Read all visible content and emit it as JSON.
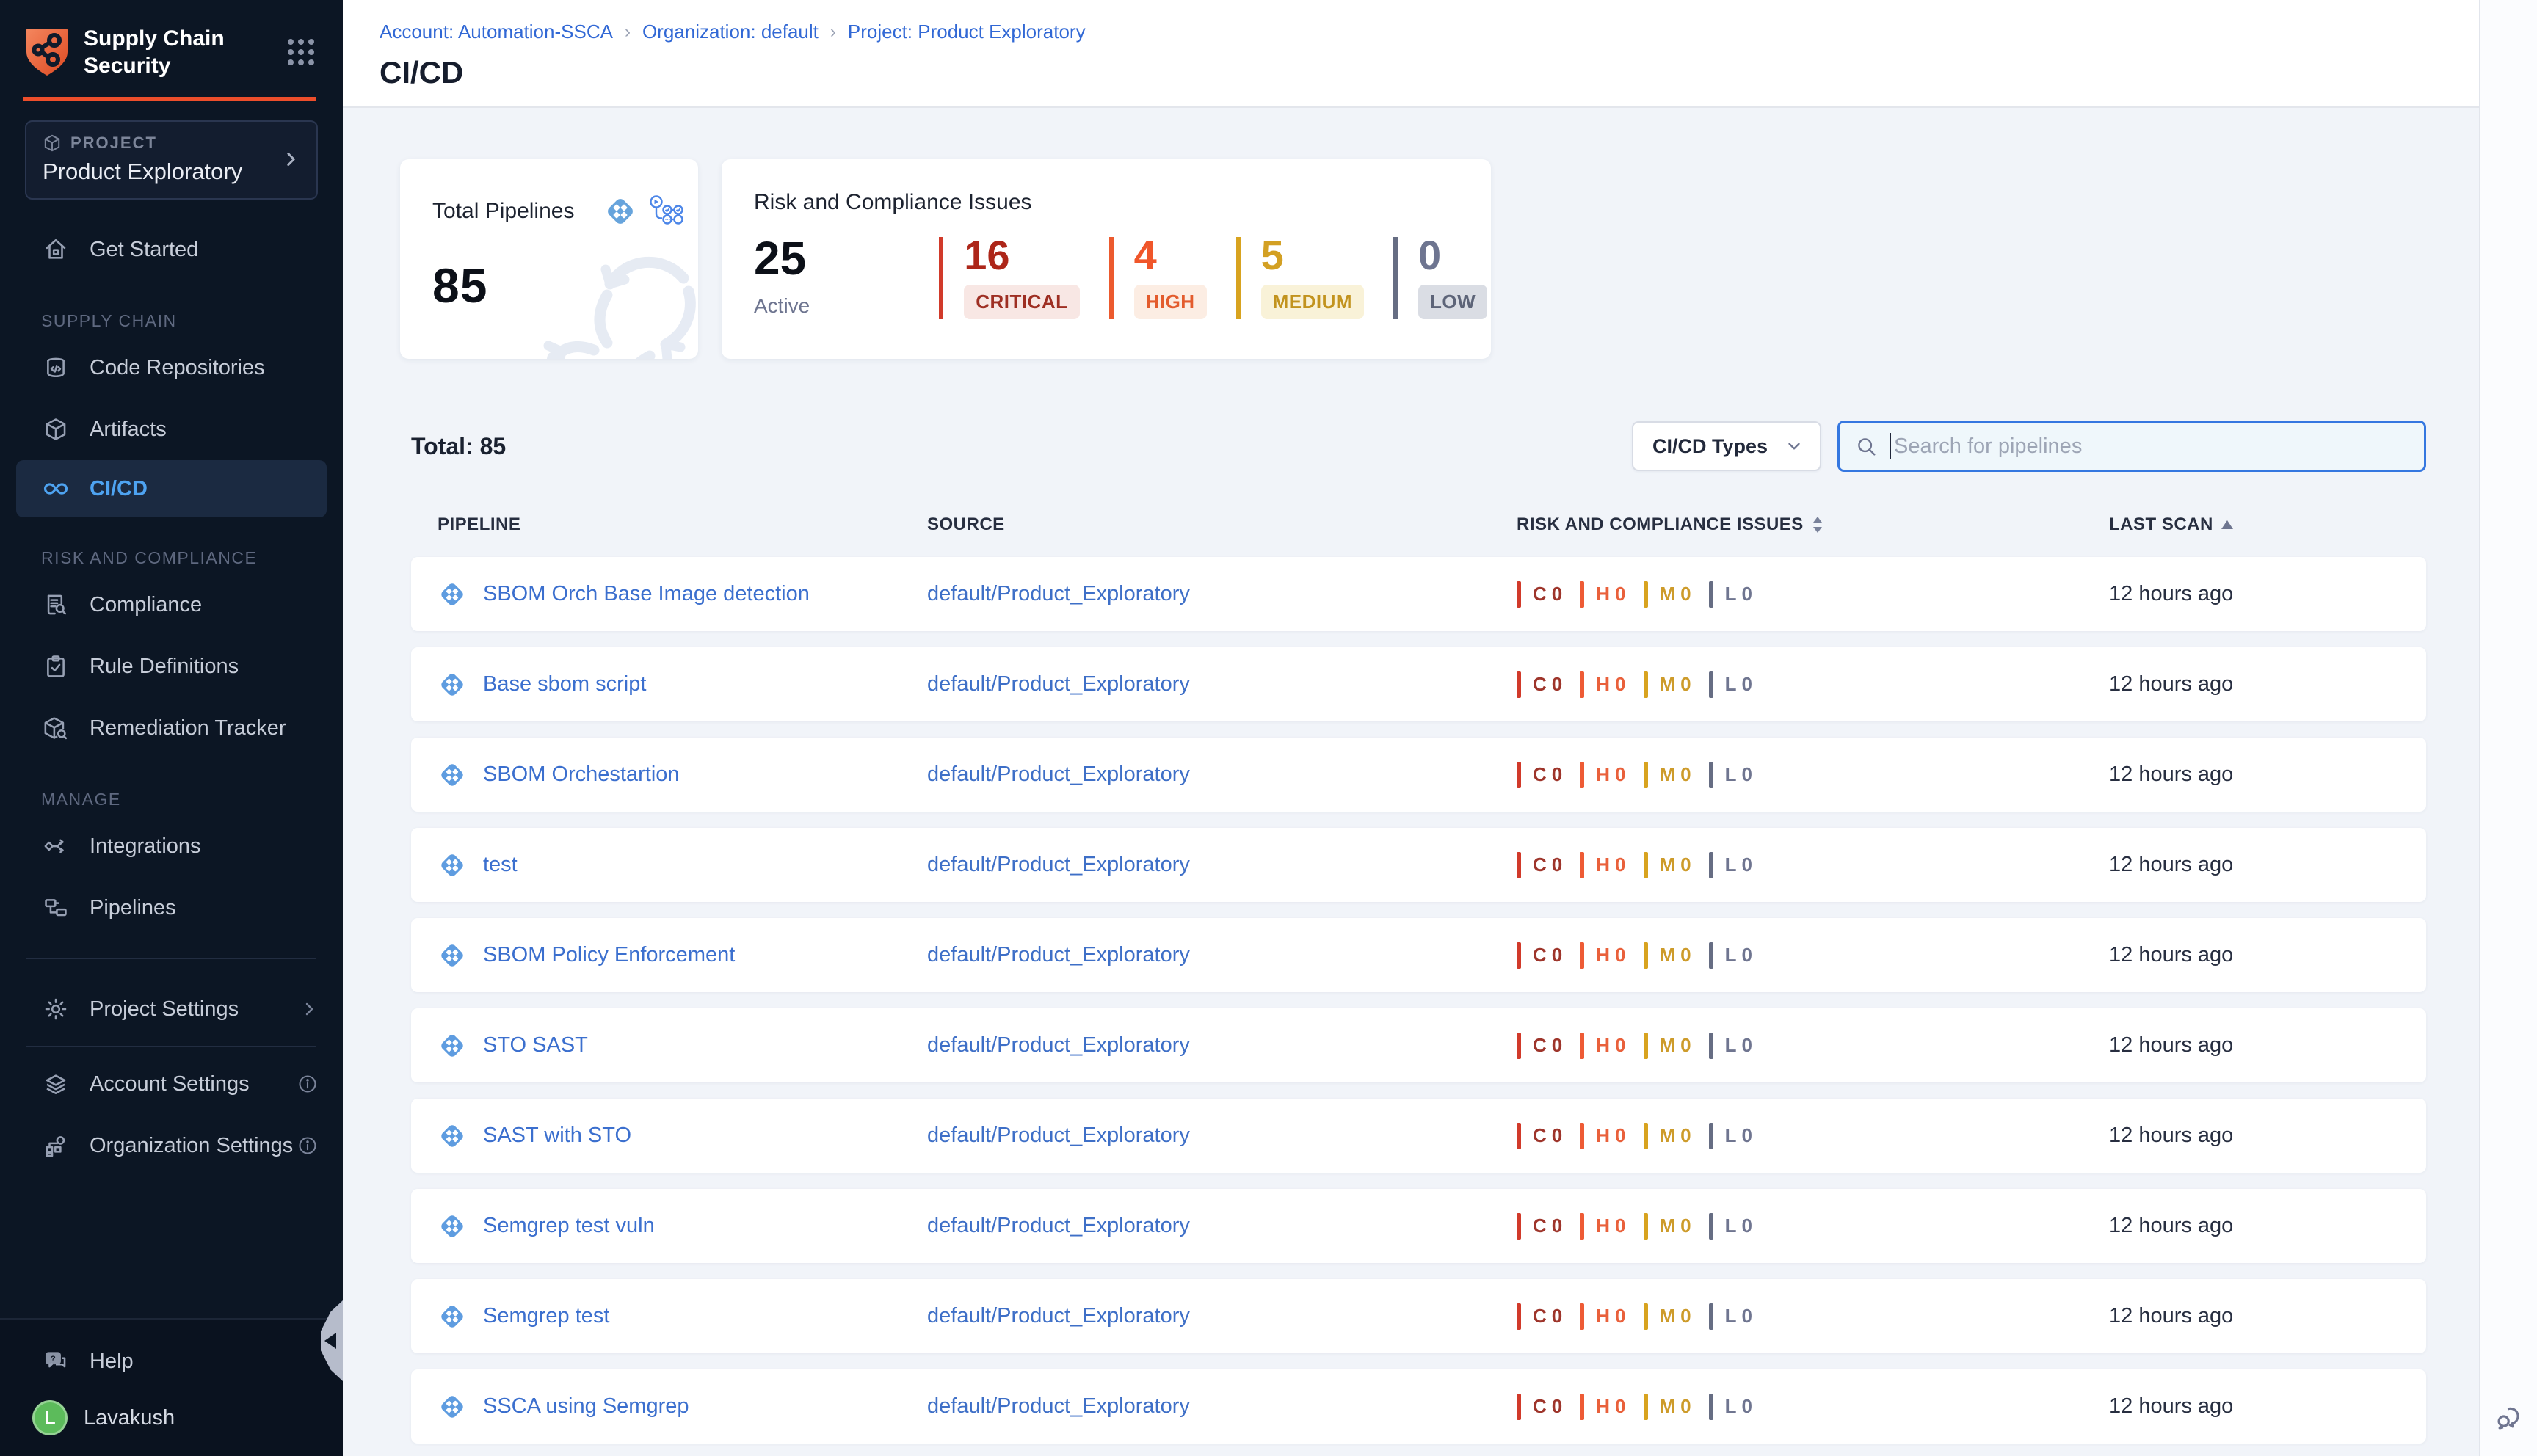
{
  "brand": {
    "title": "Supply Chain Security"
  },
  "sidebar": {
    "project": {
      "label": "PROJECT",
      "name": "Product Exploratory"
    },
    "sections": [
      {
        "label": "",
        "items": [
          {
            "id": "get-started",
            "label": "Get Started",
            "icon": "home"
          }
        ]
      },
      {
        "label": "SUPPLY CHAIN",
        "items": [
          {
            "id": "code-repositories",
            "label": "Code Repositories",
            "icon": "repo"
          },
          {
            "id": "artifacts",
            "label": "Artifacts",
            "icon": "cube"
          },
          {
            "id": "cicd",
            "label": "CI/CD",
            "icon": "infinity",
            "active": true
          }
        ]
      },
      {
        "label": "RISK AND COMPLIANCE",
        "items": [
          {
            "id": "compliance",
            "label": "Compliance",
            "icon": "doc-search"
          },
          {
            "id": "rule-definitions",
            "label": "Rule Definitions",
            "icon": "clipboard-check"
          },
          {
            "id": "remediation-tracker",
            "label": "Remediation Tracker",
            "icon": "box-wrench"
          }
        ]
      },
      {
        "label": "MANAGE",
        "items": [
          {
            "id": "integrations",
            "label": "Integrations",
            "icon": "integrations"
          },
          {
            "id": "pipelines",
            "label": "Pipelines",
            "icon": "flowchart"
          }
        ]
      }
    ],
    "project_settings_label": "Project Settings",
    "account_settings_label": "Account Settings",
    "organization_settings_label": "Organization Settings",
    "help_label": "Help",
    "user": {
      "initial": "L",
      "name": "Lavakush"
    }
  },
  "breadcrumbs": {
    "items": [
      "Account: Automation-SSCA",
      "Organization: default",
      "Project: Product Exploratory"
    ],
    "separator": "›"
  },
  "page": {
    "title": "CI/CD"
  },
  "cards": {
    "total_pipelines": {
      "label": "Total Pipelines",
      "value": "85"
    },
    "risk": {
      "label": "Risk and Compliance Issues",
      "active_value": "25",
      "active_label": "Active",
      "severities": [
        {
          "key": "critical",
          "count": "16",
          "label": "CRITICAL"
        },
        {
          "key": "high",
          "count": "4",
          "label": "HIGH"
        },
        {
          "key": "medium",
          "count": "5",
          "label": "MEDIUM"
        },
        {
          "key": "low",
          "count": "0",
          "label": "LOW"
        }
      ]
    }
  },
  "toolbar": {
    "total_label": "Total: 85",
    "type_filter_label": "CI/CD Types",
    "search_placeholder": "Search for pipelines"
  },
  "table": {
    "columns": [
      "PIPELINE",
      "SOURCE",
      "RISK AND COMPLIANCE ISSUES",
      "LAST SCAN"
    ],
    "issue_keys": [
      "C",
      "H",
      "M",
      "L"
    ],
    "issue_classes": [
      "critical",
      "high",
      "medium",
      "low"
    ],
    "rows": [
      {
        "name": "SBOM Orch Base Image detection",
        "source": "default/Product_Exploratory",
        "issues": [
          "0",
          "0",
          "0",
          "0"
        ],
        "last_scan": "12 hours ago"
      },
      {
        "name": "Base sbom script",
        "source": "default/Product_Exploratory",
        "issues": [
          "0",
          "0",
          "0",
          "0"
        ],
        "last_scan": "12 hours ago"
      },
      {
        "name": "SBOM Orchestartion",
        "source": "default/Product_Exploratory",
        "issues": [
          "0",
          "0",
          "0",
          "0"
        ],
        "last_scan": "12 hours ago"
      },
      {
        "name": "test",
        "source": "default/Product_Exploratory",
        "issues": [
          "0",
          "0",
          "0",
          "0"
        ],
        "last_scan": "12 hours ago"
      },
      {
        "name": "SBOM Policy Enforcement",
        "source": "default/Product_Exploratory",
        "issues": [
          "0",
          "0",
          "0",
          "0"
        ],
        "last_scan": "12 hours ago"
      },
      {
        "name": "STO SAST",
        "source": "default/Product_Exploratory",
        "issues": [
          "0",
          "0",
          "0",
          "0"
        ],
        "last_scan": "12 hours ago"
      },
      {
        "name": "SAST with STO",
        "source": "default/Product_Exploratory",
        "issues": [
          "0",
          "0",
          "0",
          "0"
        ],
        "last_scan": "12 hours ago"
      },
      {
        "name": "Semgrep test vuln",
        "source": "default/Product_Exploratory",
        "issues": [
          "0",
          "0",
          "0",
          "0"
        ],
        "last_scan": "12 hours ago"
      },
      {
        "name": "Semgrep test",
        "source": "default/Product_Exploratory",
        "issues": [
          "0",
          "0",
          "0",
          "0"
        ],
        "last_scan": "12 hours ago"
      },
      {
        "name": "SSCA using Semgrep",
        "source": "default/Product_Exploratory",
        "issues": [
          "0",
          "0",
          "0",
          "0"
        ],
        "last_scan": "12 hours ago"
      }
    ]
  },
  "colors": {
    "accent_orange": "#ED4E2B",
    "active_blue": "#4EA3F1",
    "link_blue": "#3B6FCE",
    "critical": "#D13A2A",
    "high": "#EE5B35",
    "medium": "#D8A31F",
    "low": "#666D83",
    "sidebar_bg": "#0C1624",
    "content_bg": "#F1F4F9"
  }
}
